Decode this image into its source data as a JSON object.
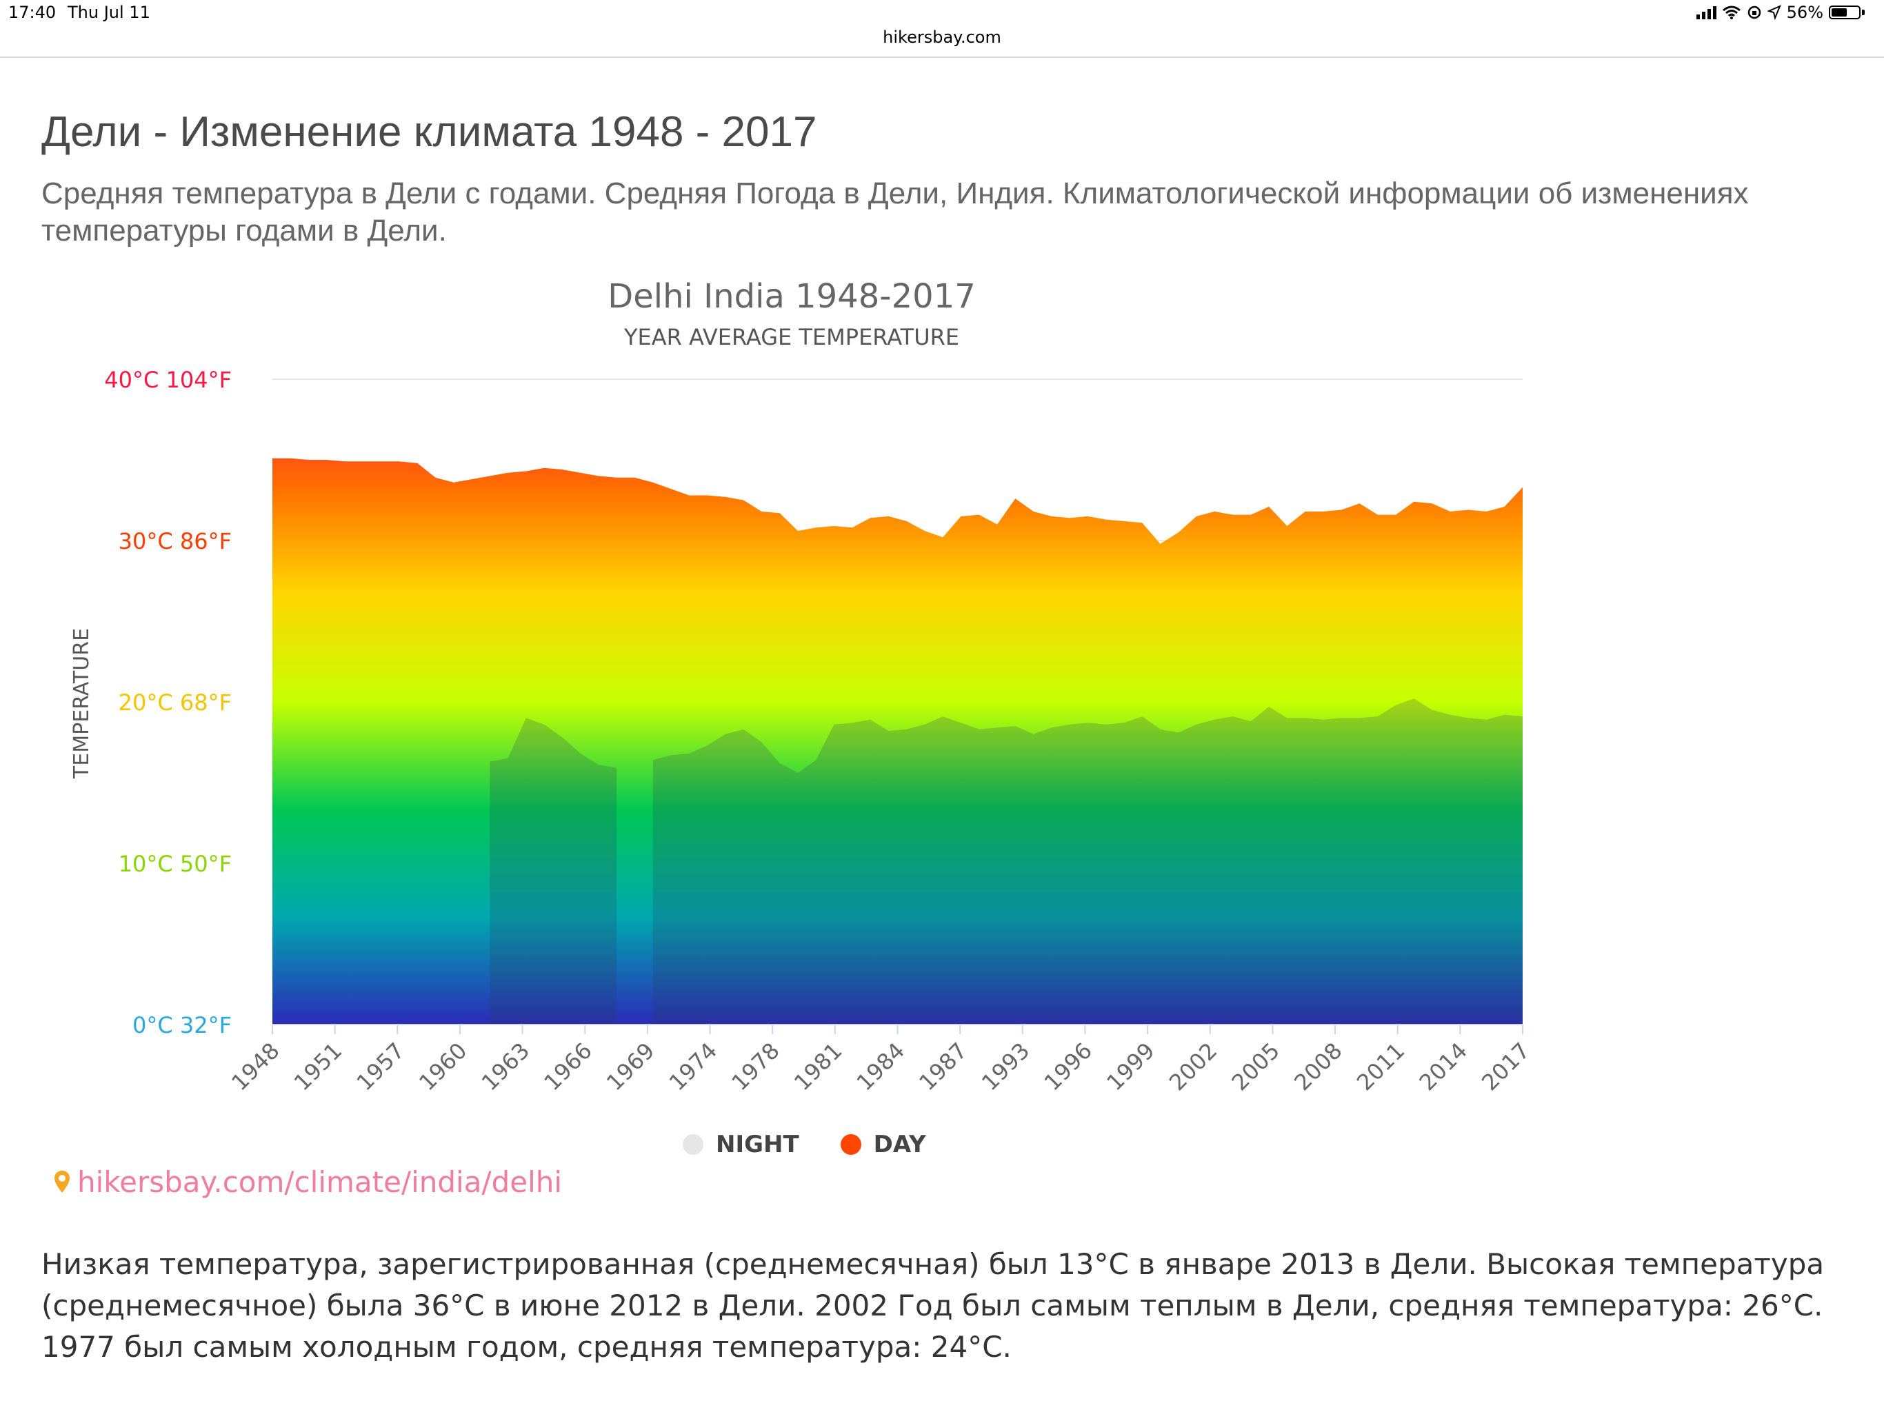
{
  "status_bar": {
    "time": "17:40",
    "date": "Thu Jul 11",
    "battery": "56%"
  },
  "browser": {
    "url": "hikersbay.com"
  },
  "page": {
    "title": "Дели - Изменение климата 1948 - 2017",
    "subtitle": "Средняя температура в Дели с годами. Средняя Погода в Дели, Индия. Климатологической информации об изменениях температуры годами в Дели.",
    "source_link": "hikersbay.com/climate/india/delhi",
    "summary": "Низкая температура, зарегистрированная (среднемесячная) был 13°C в январе 2013 в Дели. Высокая температура (среднемесячное) была 36°C в июне 2012 в Дели. 2002 Год был самым теплым в Дели, средняя температура: 26°C. 1977 был самым холодным годом, средняя температура: 24°C."
  },
  "colors": {
    "day_legend": "#ff4500",
    "night_legend": "#e6e6e6",
    "gradient": [
      "#ff1744",
      "#ff6d00",
      "#ffd600",
      "#c6ff00",
      "#00c853",
      "#00a8b0",
      "#2b2bb8"
    ]
  },
  "chart_data": {
    "type": "area",
    "title": "Delhi India 1948-2017",
    "subtitle": "YEAR AVERAGE TEMPERATURE",
    "ylabel": "TEMPERATURE",
    "ylim": [
      0,
      40
    ],
    "y_ticks": [
      {
        "value": 40,
        "label": "40°C 104°F"
      },
      {
        "value": 30,
        "label": "30°C 86°F"
      },
      {
        "value": 20,
        "label": "20°C 68°F"
      },
      {
        "value": 10,
        "label": "10°C 50°F"
      },
      {
        "value": 0,
        "label": "0°C 32°F"
      }
    ],
    "x_tick_labels": [
      "1948",
      "1951",
      "1957",
      "1960",
      "1963",
      "1966",
      "1969",
      "1974",
      "1978",
      "1981",
      "1984",
      "1987",
      "1993",
      "1996",
      "1999",
      "2002",
      "2005",
      "2008",
      "2011",
      "2014",
      "2017"
    ],
    "grid": true,
    "legend_position": "bottom",
    "series": [
      {
        "name": "DAY",
        "x": [
          1948,
          1949,
          1950,
          1951,
          1952,
          1953,
          1954,
          1955,
          1956,
          1957,
          1958,
          1959,
          1960,
          1961,
          1962,
          1963,
          1964,
          1965,
          1966,
          1967,
          1968,
          1969,
          1970,
          1971,
          1972,
          1973,
          1974,
          1975,
          1976,
          1977,
          1978,
          1979,
          1980,
          1981,
          1982,
          1983,
          1984,
          1985,
          1986,
          1987,
          1988,
          1989,
          1990,
          1991,
          1992,
          1993,
          1994,
          1995,
          1996,
          1997,
          1998,
          1999,
          2000,
          2001,
          2002,
          2003,
          2004,
          2005,
          2006,
          2007,
          2008,
          2009,
          2010,
          2011,
          2012,
          2013,
          2014,
          2015,
          2016,
          2017
        ],
        "values": [
          35.1,
          35.1,
          35.0,
          35.0,
          34.9,
          34.9,
          34.9,
          34.9,
          34.8,
          33.9,
          33.6,
          33.8,
          34.0,
          34.2,
          34.3,
          34.5,
          34.4,
          34.2,
          34.0,
          33.9,
          33.9,
          33.6,
          33.2,
          32.8,
          32.8,
          32.7,
          32.5,
          31.8,
          31.7,
          30.6,
          30.8,
          30.9,
          30.8,
          31.4,
          31.5,
          31.2,
          30.6,
          30.2,
          31.5,
          31.6,
          31.0,
          32.6,
          31.8,
          31.5,
          31.4,
          31.5,
          31.3,
          31.2,
          31.1,
          29.8,
          30.5,
          31.5,
          31.8,
          31.6,
          31.6,
          32.1,
          30.9,
          31.8,
          31.8,
          31.9,
          32.3,
          31.6,
          31.6,
          32.4,
          32.3,
          31.8,
          31.9,
          31.8,
          32.1,
          33.3
        ]
      },
      {
        "name": "NIGHT",
        "x": [
          1960,
          1961,
          1962,
          1963,
          1964,
          1965,
          1966,
          1967,
          1968,
          1969,
          1970,
          1971,
          1972,
          1973,
          1974,
          1975,
          1976,
          1977,
          1978,
          1979,
          1980,
          1981,
          1982,
          1983,
          1984,
          1985,
          1986,
          1987,
          1988,
          1989,
          1990,
          1991,
          1992,
          1993,
          1994,
          1995,
          1996,
          1997,
          1998,
          1999,
          2000,
          2001,
          2002,
          2003,
          2004,
          2005,
          2006,
          2007,
          2008,
          2009,
          2010,
          2011,
          2012,
          2013,
          2014,
          2015,
          2016,
          2017
        ],
        "values": [
          16.3,
          16.5,
          19.0,
          18.6,
          17.8,
          16.8,
          16.1,
          15.9,
          null,
          16.4,
          16.7,
          16.8,
          17.3,
          18.0,
          18.3,
          17.5,
          16.2,
          15.6,
          16.4,
          18.6,
          18.7,
          18.9,
          18.2,
          18.3,
          18.6,
          19.1,
          18.7,
          18.3,
          18.4,
          18.5,
          18.0,
          18.4,
          18.6,
          18.7,
          18.6,
          18.7,
          19.1,
          18.3,
          18.1,
          18.6,
          18.9,
          19.1,
          18.8,
          19.7,
          19.0,
          19.0,
          18.9,
          19.0,
          19.0,
          19.1,
          19.8,
          20.2,
          19.5,
          19.2,
          19.0,
          18.9,
          19.2,
          19.1
        ]
      }
    ]
  }
}
